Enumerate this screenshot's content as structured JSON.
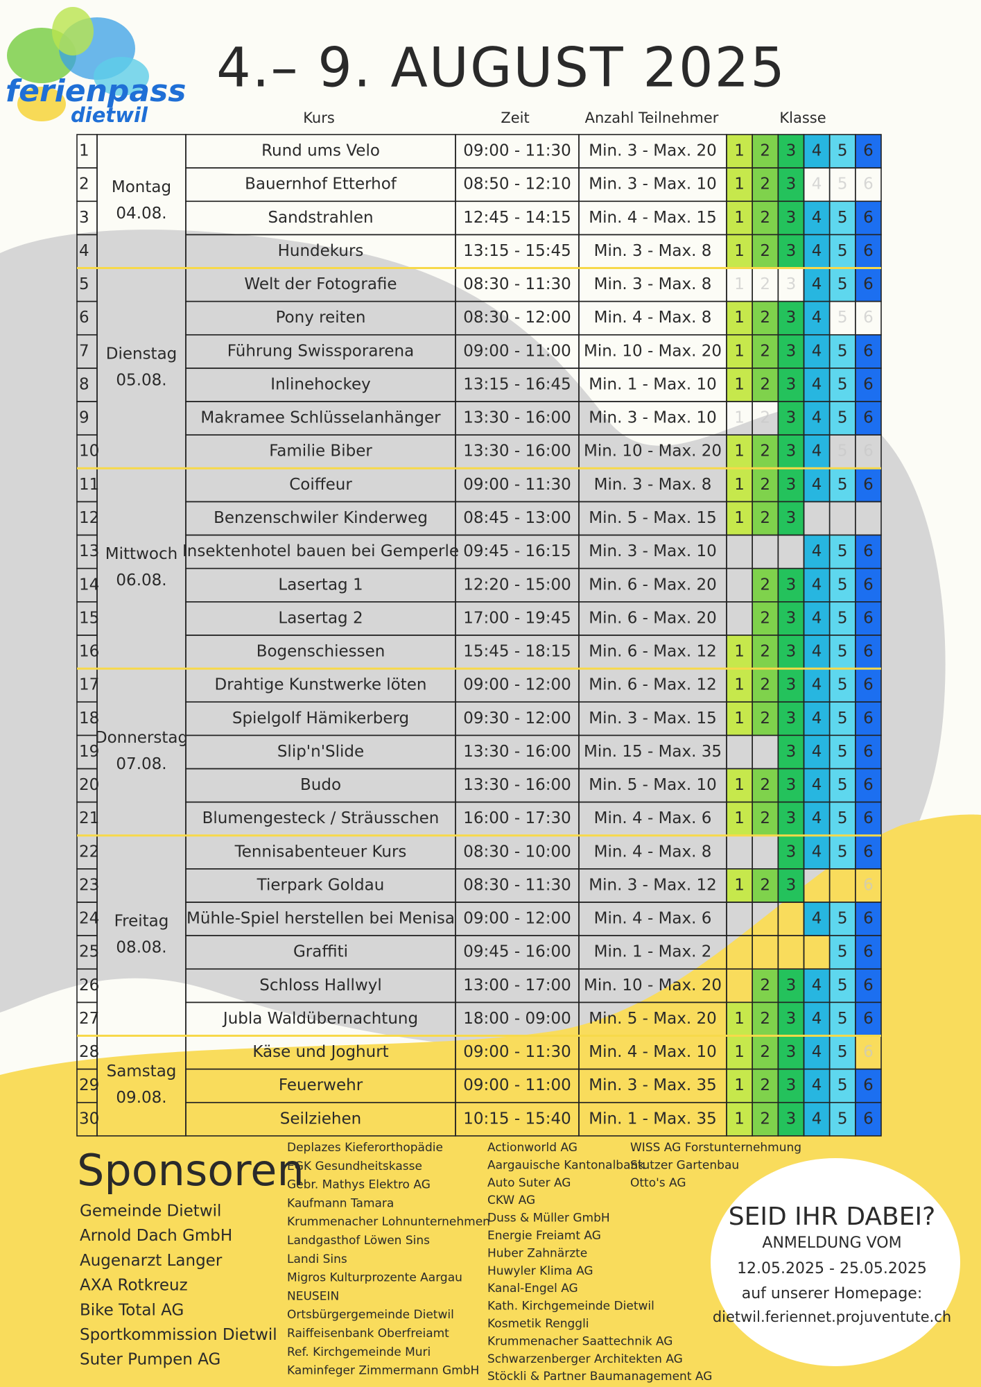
{
  "logo": {
    "name": "ferienpass",
    "place": "dietwil"
  },
  "header": {
    "title": "4.– 9. AUGUST 2025"
  },
  "columns": [
    "Kurs",
    "Zeit",
    "Anzahl Teilnehmer",
    "Klasse"
  ],
  "grade_colors": [
    "#c6e84c",
    "#7fd24c",
    "#24c25c",
    "#27b6e0",
    "#5ed7ee",
    "#1c6ff0"
  ],
  "days": [
    {
      "name": "Montag",
      "date": "04.08.",
      "entries": [
        {
          "num": 1,
          "course": "Rund ums Velo",
          "time": "09:00 - 11:30",
          "participants": "Min. 3 - Max. 20",
          "grades": [
            1,
            2,
            3,
            4,
            5,
            6
          ],
          "faded": []
        },
        {
          "num": 2,
          "course": "Bauernhof Etterhof",
          "time": "08:50 - 12:10",
          "participants": "Min. 3 - Max. 10",
          "grades": [
            1,
            2,
            3
          ],
          "faded": [
            4,
            5,
            6
          ]
        },
        {
          "num": 3,
          "course": "Sandstrahlen",
          "time": "12:45 - 14:15",
          "participants": "Min. 4 - Max. 15",
          "grades": [
            1,
            2,
            3,
            4,
            5,
            6
          ],
          "faded": []
        },
        {
          "num": 4,
          "course": "Hundekurs",
          "time": "13:15 - 15:45",
          "participants": "Min. 3 - Max. 8",
          "grades": [
            1,
            2,
            3,
            4,
            5,
            6
          ],
          "faded": []
        }
      ]
    },
    {
      "name": "Dienstag",
      "date": "05.08.",
      "entries": [
        {
          "num": 5,
          "course": "Welt der Fotografie",
          "time": "08:30 - 11:30",
          "participants": "Min. 3 - Max. 8",
          "grades": [
            4,
            5,
            6
          ],
          "faded": [
            1,
            2,
            3
          ]
        },
        {
          "num": 6,
          "course": "Pony reiten",
          "time": "08:30 - 12:00",
          "participants": "Min. 4 - Max. 8",
          "grades": [
            1,
            2,
            3,
            4
          ],
          "faded": [
            5,
            6
          ]
        },
        {
          "num": 7,
          "course": "Führung Swissporarena",
          "time": "09:00 - 11:00",
          "participants": "Min. 10 - Max. 20",
          "grades": [
            1,
            2,
            3,
            4,
            5,
            6
          ],
          "faded": []
        },
        {
          "num": 8,
          "course": "Inlinehockey",
          "time": "13:15 - 16:45",
          "participants": "Min. 1 - Max. 10",
          "grades": [
            1,
            2,
            3,
            4,
            5,
            6
          ],
          "faded": []
        },
        {
          "num": 9,
          "course": "Makramee Schlüsselanhänger",
          "time": "13:30 - 16:00",
          "participants": "Min. 3 - Max. 10",
          "grades": [
            3,
            4,
            5,
            6
          ],
          "faded": [
            1,
            2
          ]
        },
        {
          "num": 10,
          "course": "Familie Biber",
          "time": "13:30 - 16:00",
          "participants": "Min. 10 - Max. 20",
          "grades": [
            1,
            2,
            3,
            4
          ],
          "faded": [
            5,
            6
          ]
        }
      ]
    },
    {
      "name": "Mittwoch",
      "date": "06.08.",
      "entries": [
        {
          "num": 11,
          "course": "Coiffeur",
          "time": "09:00 - 11:30",
          "participants": "Min. 3 - Max. 8",
          "grades": [
            1,
            2,
            3,
            4,
            5,
            6
          ],
          "faded": []
        },
        {
          "num": 12,
          "course": "Benzenschwiler Kinderweg",
          "time": "08:45 - 13:00",
          "participants": "Min. 5 - Max. 15",
          "grades": [
            1,
            2,
            3
          ],
          "faded": []
        },
        {
          "num": 13,
          "course": "Insektenhotel bauen bei Gemperle",
          "time": "09:45 - 16:15",
          "participants": "Min. 3 - Max. 10",
          "grades": [
            4,
            5,
            6
          ],
          "faded": []
        },
        {
          "num": 14,
          "course": "Lasertag 1",
          "time": "12:20 - 15:00",
          "participants": "Min. 6 - Max. 20",
          "grades": [
            2,
            3,
            4,
            5,
            6
          ],
          "faded": []
        },
        {
          "num": 15,
          "course": "Lasertag 2",
          "time": "17:00 - 19:45",
          "participants": "Min. 6 - Max. 20",
          "grades": [
            2,
            3,
            4,
            5,
            6
          ],
          "faded": []
        },
        {
          "num": 16,
          "course": "Bogenschiessen",
          "time": "15:45 - 18:15",
          "participants": "Min. 6 - Max. 12",
          "grades": [
            1,
            2,
            3,
            4,
            5,
            6
          ],
          "faded": []
        }
      ]
    },
    {
      "name": "Donnerstag",
      "date": "07.08.",
      "entries": [
        {
          "num": 17,
          "course": "Drahtige Kunstwerke löten",
          "time": "09:00 - 12:00",
          "participants": "Min. 6 - Max. 12",
          "grades": [
            1,
            2,
            3,
            4,
            5,
            6
          ],
          "faded": []
        },
        {
          "num": 18,
          "course": "Spielgolf Hämikerberg",
          "time": "09:30 - 12:00",
          "participants": "Min. 3 - Max. 15",
          "grades": [
            1,
            2,
            3,
            4,
            5,
            6
          ],
          "faded": []
        },
        {
          "num": 19,
          "course": "Slip'n'Slide",
          "time": "13:30 - 16:00",
          "participants": "Min. 15 - Max. 35",
          "grades": [
            3,
            4,
            5,
            6
          ],
          "faded": []
        },
        {
          "num": 20,
          "course": "Budo",
          "time": "13:30 - 16:00",
          "participants": "Min. 5 - Max. 10",
          "grades": [
            1,
            2,
            3,
            4,
            5,
            6
          ],
          "faded": []
        },
        {
          "num": 21,
          "course": "Blumengesteck / Sträusschen",
          "time": "16:00 - 17:30",
          "participants": "Min. 4 - Max. 6",
          "grades": [
            1,
            2,
            3,
            4,
            5,
            6
          ],
          "faded": []
        }
      ]
    },
    {
      "name": "Freitag",
      "date": "08.08.",
      "entries": [
        {
          "num": 22,
          "course": "Tennisabenteuer Kurs",
          "time": "08:30 - 10:00",
          "participants": "Min. 4 - Max. 8",
          "grades": [
            3,
            4,
            5,
            6
          ],
          "faded": []
        },
        {
          "num": 23,
          "course": "Tierpark Goldau",
          "time": "08:30 - 11:30",
          "participants": "Min. 3 - Max. 12",
          "grades": [
            1,
            2,
            3
          ],
          "faded": [
            6
          ]
        },
        {
          "num": 24,
          "course": "Mühle-Spiel herstellen bei Menisa",
          "time": "09:00 - 12:00",
          "participants": "Min. 4 - Max. 6",
          "grades": [
            4,
            5,
            6
          ],
          "faded": []
        },
        {
          "num": 25,
          "course": "Graffiti",
          "time": "09:45 - 16:00",
          "participants": "Min. 1 - Max. 2",
          "grades": [
            5,
            6
          ],
          "faded": []
        },
        {
          "num": 26,
          "course": "Schloss Hallwyl",
          "time": "13:00 - 17:00",
          "participants": "Min. 10 - Max. 20",
          "grades": [
            2,
            3,
            4,
            5,
            6
          ],
          "faded": []
        },
        {
          "num": 27,
          "course": "Jubla Waldübernachtung",
          "time": "18:00 - 09:00",
          "participants": "Min. 5 - Max. 20",
          "grades": [
            1,
            2,
            3,
            4,
            5,
            6
          ],
          "faded": []
        }
      ]
    },
    {
      "name": "Samstag",
      "date": "09.08.",
      "entries": [
        {
          "num": 28,
          "course": "Käse und Joghurt",
          "time": "09:00 - 11:30",
          "participants": "Min. 4 - Max. 10",
          "grades": [
            1,
            2,
            3,
            4,
            5
          ],
          "faded": [
            6
          ]
        },
        {
          "num": 29,
          "course": "Feuerwehr",
          "time": "09:00 - 11:00",
          "participants": "Min. 3 - Max. 35",
          "grades": [
            1,
            2,
            3,
            4,
            5,
            6
          ],
          "faded": []
        },
        {
          "num": 30,
          "course": "Seilziehen",
          "time": "10:15 - 15:40",
          "participants": "Min. 1 - Max. 35",
          "grades": [
            1,
            2,
            3,
            4,
            5,
            6
          ],
          "faded": []
        }
      ]
    }
  ],
  "sponsors": {
    "title": "Sponsoren",
    "main": [
      "Gemeinde Dietwil",
      "Arnold Dach GmbH",
      "Augenarzt Langer",
      "AXA Rotkreuz",
      "Bike Total AG",
      "Sportkommission Dietwil",
      "Suter Pumpen AG"
    ],
    "list1": [
      "Deplazes Kieferorthopädie",
      "EGK Gesundheitskasse",
      "Gebr. Mathys Elektro AG",
      "Kaufmann Tamara",
      "Krummenacher Lohnunternehmen",
      "Landgasthof Löwen Sins",
      "Landi Sins",
      "Migros Kulturprozente Aargau",
      "NEUSEIN",
      "Ortsbürgergemeinde Dietwil",
      "Raiffeisenbank Oberfreiamt",
      "Ref. Kirchgemeinde Muri",
      "Kaminfeger Zimmermann GmbH"
    ],
    "list2": [
      "Actionworld AG",
      "Aargauische Kantonalbank",
      "Auto Suter AG",
      "CKW AG",
      "Duss & Müller GmbH",
      "Energie Freiamt AG",
      "Huber Zahnärzte",
      "Huwyler Klima AG",
      "Kanal-Engel AG",
      "Kath. Kirchgemeinde Dietwil",
      "Kosmetik Renggli",
      "Krummenacher Saattechnik AG",
      "Schwarzenberger Architekten AG",
      "Stöckli & Partner Baumanagement AG"
    ],
    "list3": [
      "WISS AG Forstunternehmung",
      "Stutzer Gartenbau",
      "Otto's AG"
    ]
  },
  "callout": {
    "heading": "SEID IHR DABEI?",
    "line1": "ANMELDUNG VOM",
    "dates": "12.05.2025 - 25.05.2025",
    "line2": "auf unserer Homepage:",
    "url": "dietwil.feriennet.projuventute.ch"
  }
}
